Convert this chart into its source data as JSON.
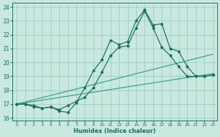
{
  "xlabel": "Humidex (Indice chaleur)",
  "xlim": [
    -0.5,
    23.5
  ],
  "ylim": [
    15.8,
    24.3
  ],
  "yticks": [
    16,
    17,
    18,
    19,
    20,
    21,
    22,
    23,
    24
  ],
  "xticks": [
    0,
    1,
    2,
    3,
    4,
    5,
    6,
    7,
    8,
    9,
    10,
    11,
    12,
    13,
    14,
    15,
    16,
    17,
    18,
    19,
    20,
    21,
    22,
    23
  ],
  "bg_color": "#c8e8e0",
  "grid_color": "#a0ccc0",
  "dark_color": "#1a6e5c",
  "light_color": "#3a9e88",
  "line1": {
    "x": [
      0,
      1,
      2,
      3,
      4,
      5,
      6,
      7,
      8,
      9,
      10,
      11,
      12,
      13,
      14,
      15,
      16,
      17,
      18,
      19,
      20,
      21,
      22,
      23
    ],
    "y": [
      17.0,
      17.0,
      16.8,
      16.7,
      16.8,
      16.5,
      16.4,
      17.1,
      18.2,
      19.4,
      20.2,
      21.6,
      21.3,
      21.5,
      23.0,
      23.8,
      22.7,
      22.8,
      21.0,
      20.8,
      19.7,
      19.0,
      19.0,
      19.1
    ]
  },
  "line2": {
    "x": [
      0,
      1,
      2,
      3,
      4,
      5,
      6,
      7,
      8,
      9,
      10,
      11,
      12,
      13,
      14,
      15,
      16,
      17,
      18,
      19,
      20,
      21,
      22,
      23
    ],
    "y": [
      17.0,
      17.0,
      16.9,
      16.7,
      16.8,
      16.6,
      16.9,
      17.2,
      17.5,
      18.2,
      19.3,
      20.5,
      21.1,
      21.2,
      22.5,
      23.7,
      22.5,
      21.1,
      20.5,
      19.7,
      19.0,
      19.0,
      19.0,
      19.1
    ]
  },
  "line3_x": [
    0,
    23
  ],
  "line3_y": [
    17.0,
    20.6
  ],
  "line4_x": [
    0,
    23
  ],
  "line4_y": [
    17.0,
    19.2
  ]
}
